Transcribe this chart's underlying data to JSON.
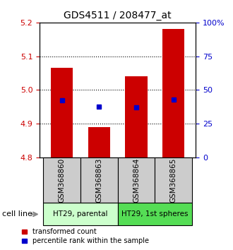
{
  "title": "GDS4511 / 208477_at",
  "samples": [
    "GSM368860",
    "GSM368863",
    "GSM368864",
    "GSM368865"
  ],
  "bar_tops": [
    5.065,
    4.89,
    5.04,
    5.18
  ],
  "bar_bottom": 4.8,
  "blue_markers": [
    4.97,
    4.95,
    4.948,
    4.972
  ],
  "ylim_left": [
    4.8,
    5.2
  ],
  "ylim_right": [
    0,
    100
  ],
  "yticks_left": [
    4.8,
    4.9,
    5.0,
    5.1,
    5.2
  ],
  "yticks_right": [
    0,
    25,
    50,
    75,
    100
  ],
  "ytick_labels_right": [
    "0",
    "25",
    "50",
    "75",
    "100%"
  ],
  "bar_color": "#cc0000",
  "blue_color": "#0000cc",
  "cell_line_labels": [
    "HT29, parental",
    "HT29, 1st spheres"
  ],
  "group1_color": "#ccffcc",
  "group2_color": "#55dd55",
  "label_color_left": "#cc0000",
  "label_color_right": "#0000cc",
  "bar_width": 0.6,
  "legend_red_label": "transformed count",
  "legend_blue_label": "percentile rank within the sample",
  "xlabel_cell_line": "cell line",
  "sample_box_color": "#cccccc"
}
